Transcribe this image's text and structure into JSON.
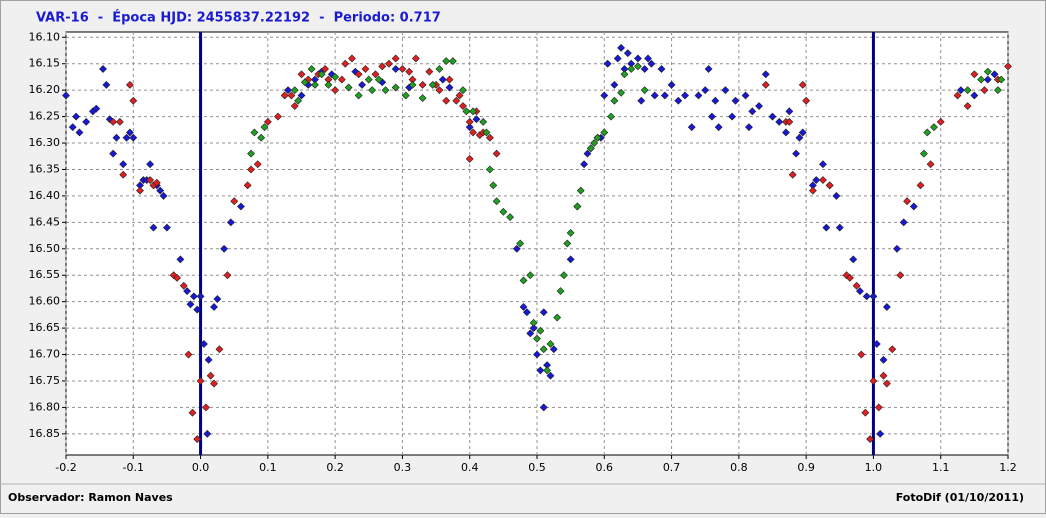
{
  "chart_data": {
    "type": "scatter",
    "title": "VAR-16  -  Época HJD: 2455837.22192  -  Periodo: 0.717",
    "footer_left": "Observador: Ramon Naves",
    "footer_right": "FotoDif (01/10/2011)",
    "xlim": [
      -0.2,
      1.2
    ],
    "xticks": [
      -0.2,
      -0.1,
      {
        "value": 0,
        "label": "0.0"
      },
      0.1,
      0.2,
      0.3,
      0.4,
      0.5,
      0.6,
      0.7,
      0.8,
      0.9,
      {
        "value": 1,
        "label": "1.0"
      },
      1.1,
      1.2
    ],
    "ylim": [
      16.09,
      16.89
    ],
    "y_inverted": true,
    "yticks": [
      {
        "value": 16.1,
        "label": "16.10"
      },
      16.15,
      {
        "value": 16.2,
        "label": "16.20"
      },
      16.25,
      {
        "value": 16.3,
        "label": "16.30"
      },
      16.35,
      {
        "value": 16.4,
        "label": "16.40"
      },
      16.45,
      {
        "value": 16.5,
        "label": "16.50"
      },
      16.55,
      {
        "value": 16.6,
        "label": "16.60"
      },
      16.65,
      {
        "value": 16.7,
        "label": "16.70"
      },
      16.75,
      {
        "value": 16.8,
        "label": "16.80"
      },
      16.85
    ],
    "grid": true,
    "vlines": [
      0,
      1
    ],
    "vline_color": "#000080",
    "series": [
      {
        "color": "#1818d8",
        "x": [
          -0.2,
          -0.19,
          -0.185,
          -0.18,
          -0.17,
          -0.16,
          -0.155,
          -0.145,
          -0.14,
          -0.135,
          -0.13,
          -0.125,
          -0.115,
          -0.11,
          -0.105,
          -0.1,
          -0.09,
          -0.085,
          -0.08,
          -0.075,
          -0.065,
          -0.06,
          -0.055,
          -0.07,
          -0.05,
          -0.03,
          -0.02,
          -0.015,
          -0.01,
          -0.005,
          0.0,
          0.005,
          0.01,
          0.012,
          0.02,
          0.025,
          0.035,
          0.045,
          0.06,
          0.13,
          0.15,
          0.16,
          0.17,
          0.18,
          0.195,
          0.23,
          0.24,
          0.27,
          0.29,
          0.31,
          0.36,
          0.37,
          0.4,
          0.41,
          0.47,
          0.48,
          0.485,
          0.49,
          0.495,
          0.5,
          0.505,
          0.51,
          0.515,
          0.52,
          0.51,
          0.525,
          0.55,
          0.56,
          0.57,
          0.575,
          0.58,
          0.59,
          0.595,
          0.6,
          0.605,
          0.615,
          0.62,
          0.625,
          0.63,
          0.635,
          0.64,
          0.65,
          0.655,
          0.66,
          0.665,
          0.67,
          0.675,
          0.685,
          0.69,
          0.7,
          0.71,
          0.72,
          0.73,
          0.74,
          0.75,
          0.755,
          0.76,
          0.765,
          0.77,
          0.78,
          0.79,
          0.795,
          0.81,
          0.815,
          0.82,
          0.83,
          0.84,
          0.85,
          0.86,
          0.87,
          0.875,
          0.885,
          0.89,
          0.895,
          0.91,
          0.915,
          0.925,
          0.935,
          0.945,
          0.93,
          0.95,
          0.97,
          0.98,
          0.99,
          1.0,
          1.005,
          1.01,
          1.015,
          1.02,
          1.035,
          1.045,
          1.06,
          1.13,
          1.15,
          1.17,
          1.18
        ],
        "values": [
          16.21,
          16.27,
          16.25,
          16.28,
          16.26,
          16.24,
          16.235,
          16.16,
          16.19,
          16.255,
          16.32,
          16.29,
          16.34,
          16.29,
          16.28,
          16.29,
          16.38,
          16.37,
          16.37,
          16.34,
          16.38,
          16.39,
          16.4,
          16.46,
          16.46,
          16.52,
          16.58,
          16.605,
          16.59,
          16.615,
          16.59,
          16.68,
          16.85,
          16.71,
          16.61,
          16.595,
          16.5,
          16.45,
          16.42,
          16.2,
          16.21,
          16.19,
          16.18,
          16.165,
          16.17,
          16.165,
          16.19,
          16.185,
          16.16,
          16.195,
          16.18,
          16.195,
          16.27,
          16.255,
          16.5,
          16.61,
          16.62,
          16.66,
          16.65,
          16.7,
          16.73,
          16.62,
          16.72,
          16.74,
          16.8,
          16.69,
          16.52,
          16.42,
          16.34,
          16.32,
          16.31,
          16.29,
          16.29,
          16.21,
          16.15,
          16.19,
          16.14,
          16.12,
          16.16,
          16.13,
          16.15,
          16.14,
          16.22,
          16.16,
          16.14,
          16.15,
          16.21,
          16.16,
          16.21,
          16.19,
          16.22,
          16.21,
          16.27,
          16.21,
          16.2,
          16.16,
          16.25,
          16.22,
          16.27,
          16.2,
          16.25,
          16.22,
          16.21,
          16.27,
          16.24,
          16.23,
          16.17,
          16.25,
          16.26,
          16.28,
          16.24,
          16.32,
          16.29,
          16.28,
          16.38,
          16.37,
          16.34,
          16.38,
          16.4,
          16.46,
          16.46,
          16.52,
          16.58,
          16.59,
          16.59,
          16.68,
          16.85,
          16.71,
          16.61,
          16.5,
          16.45,
          16.42,
          16.2,
          16.21,
          16.18,
          16.17
        ]
      },
      {
        "color": "#e02020",
        "x": [
          -0.13,
          -0.12,
          -0.115,
          -0.105,
          -0.1,
          -0.09,
          -0.075,
          -0.07,
          -0.065,
          -0.04,
          -0.035,
          -0.025,
          -0.018,
          -0.012,
          -0.005,
          0.0,
          0.008,
          0.015,
          0.02,
          0.028,
          0.04,
          0.05,
          0.07,
          0.075,
          0.085,
          0.1,
          0.115,
          0.125,
          0.135,
          0.14,
          0.15,
          0.16,
          0.175,
          0.185,
          0.19,
          0.2,
          0.21,
          0.215,
          0.225,
          0.235,
          0.245,
          0.26,
          0.27,
          0.28,
          0.29,
          0.3,
          0.31,
          0.315,
          0.32,
          0.33,
          0.34,
          0.35,
          0.355,
          0.365,
          0.37,
          0.38,
          0.385,
          0.39,
          0.4,
          0.405,
          0.41,
          0.415,
          0.42,
          0.43,
          0.4,
          0.44,
          0.84,
          0.87,
          0.875,
          0.88,
          0.895,
          0.9,
          0.91,
          0.925,
          0.935,
          0.96,
          0.965,
          0.975,
          0.982,
          0.988,
          0.995,
          1.0,
          1.008,
          1.015,
          1.02,
          1.028,
          1.04,
          1.05,
          1.07,
          1.085,
          1.1,
          1.125,
          1.14,
          1.15,
          1.165,
          1.185,
          1.2
        ],
        "values": [
          16.26,
          16.26,
          16.36,
          16.19,
          16.22,
          16.39,
          16.37,
          16.38,
          16.375,
          16.55,
          16.555,
          16.57,
          16.7,
          16.81,
          16.86,
          16.75,
          16.8,
          16.74,
          16.755,
          16.69,
          16.55,
          16.41,
          16.38,
          16.35,
          16.34,
          16.26,
          16.25,
          16.21,
          16.21,
          16.23,
          16.17,
          16.18,
          16.17,
          16.16,
          16.18,
          16.2,
          16.18,
          16.15,
          16.14,
          16.17,
          16.16,
          16.17,
          16.155,
          16.15,
          16.14,
          16.16,
          16.165,
          16.18,
          16.14,
          16.19,
          16.165,
          16.19,
          16.2,
          16.22,
          16.18,
          16.22,
          16.21,
          16.23,
          16.26,
          16.28,
          16.24,
          16.285,
          16.28,
          16.29,
          16.33,
          16.32,
          16.19,
          16.26,
          16.26,
          16.36,
          16.19,
          16.22,
          16.39,
          16.37,
          16.38,
          16.55,
          16.555,
          16.57,
          16.7,
          16.81,
          16.86,
          16.75,
          16.8,
          16.74,
          16.755,
          16.69,
          16.55,
          16.41,
          16.38,
          16.34,
          16.26,
          16.21,
          16.23,
          16.17,
          16.2,
          16.18,
          16.155
        ]
      },
      {
        "color": "#20a020",
        "x": [
          0.075,
          0.08,
          0.09,
          0.095,
          0.14,
          0.145,
          0.155,
          0.165,
          0.17,
          0.18,
          0.19,
          0.2,
          0.22,
          0.235,
          0.25,
          0.255,
          0.265,
          0.275,
          0.29,
          0.305,
          0.315,
          0.33,
          0.345,
          0.355,
          0.365,
          0.375,
          0.39,
          0.395,
          0.405,
          0.42,
          0.425,
          0.43,
          0.435,
          0.44,
          0.45,
          0.46,
          0.475,
          0.48,
          0.49,
          0.495,
          0.5,
          0.505,
          0.51,
          0.515,
          0.52,
          0.53,
          0.535,
          0.54,
          0.545,
          0.55,
          0.56,
          0.565,
          0.58,
          0.585,
          0.59,
          0.6,
          0.61,
          0.615,
          0.625,
          0.63,
          0.64,
          0.65,
          0.66,
          1.075,
          1.08,
          1.09,
          1.14,
          1.16,
          1.17,
          1.185,
          1.19
        ],
        "values": [
          16.32,
          16.28,
          16.29,
          16.27,
          16.2,
          16.22,
          16.185,
          16.16,
          16.19,
          16.17,
          16.19,
          16.175,
          16.195,
          16.21,
          16.18,
          16.2,
          16.18,
          16.2,
          16.195,
          16.21,
          16.19,
          16.215,
          16.19,
          16.16,
          16.145,
          16.145,
          16.2,
          16.24,
          16.24,
          16.26,
          16.28,
          16.35,
          16.38,
          16.41,
          16.43,
          16.44,
          16.49,
          16.56,
          16.55,
          16.64,
          16.67,
          16.655,
          16.69,
          16.73,
          16.68,
          16.63,
          16.58,
          16.55,
          16.49,
          16.47,
          16.42,
          16.39,
          16.31,
          16.3,
          16.29,
          16.28,
          16.25,
          16.22,
          16.205,
          16.17,
          16.16,
          16.155,
          16.2,
          16.32,
          16.28,
          16.27,
          16.2,
          16.18,
          16.165,
          16.2,
          16.18
        ]
      }
    ]
  }
}
